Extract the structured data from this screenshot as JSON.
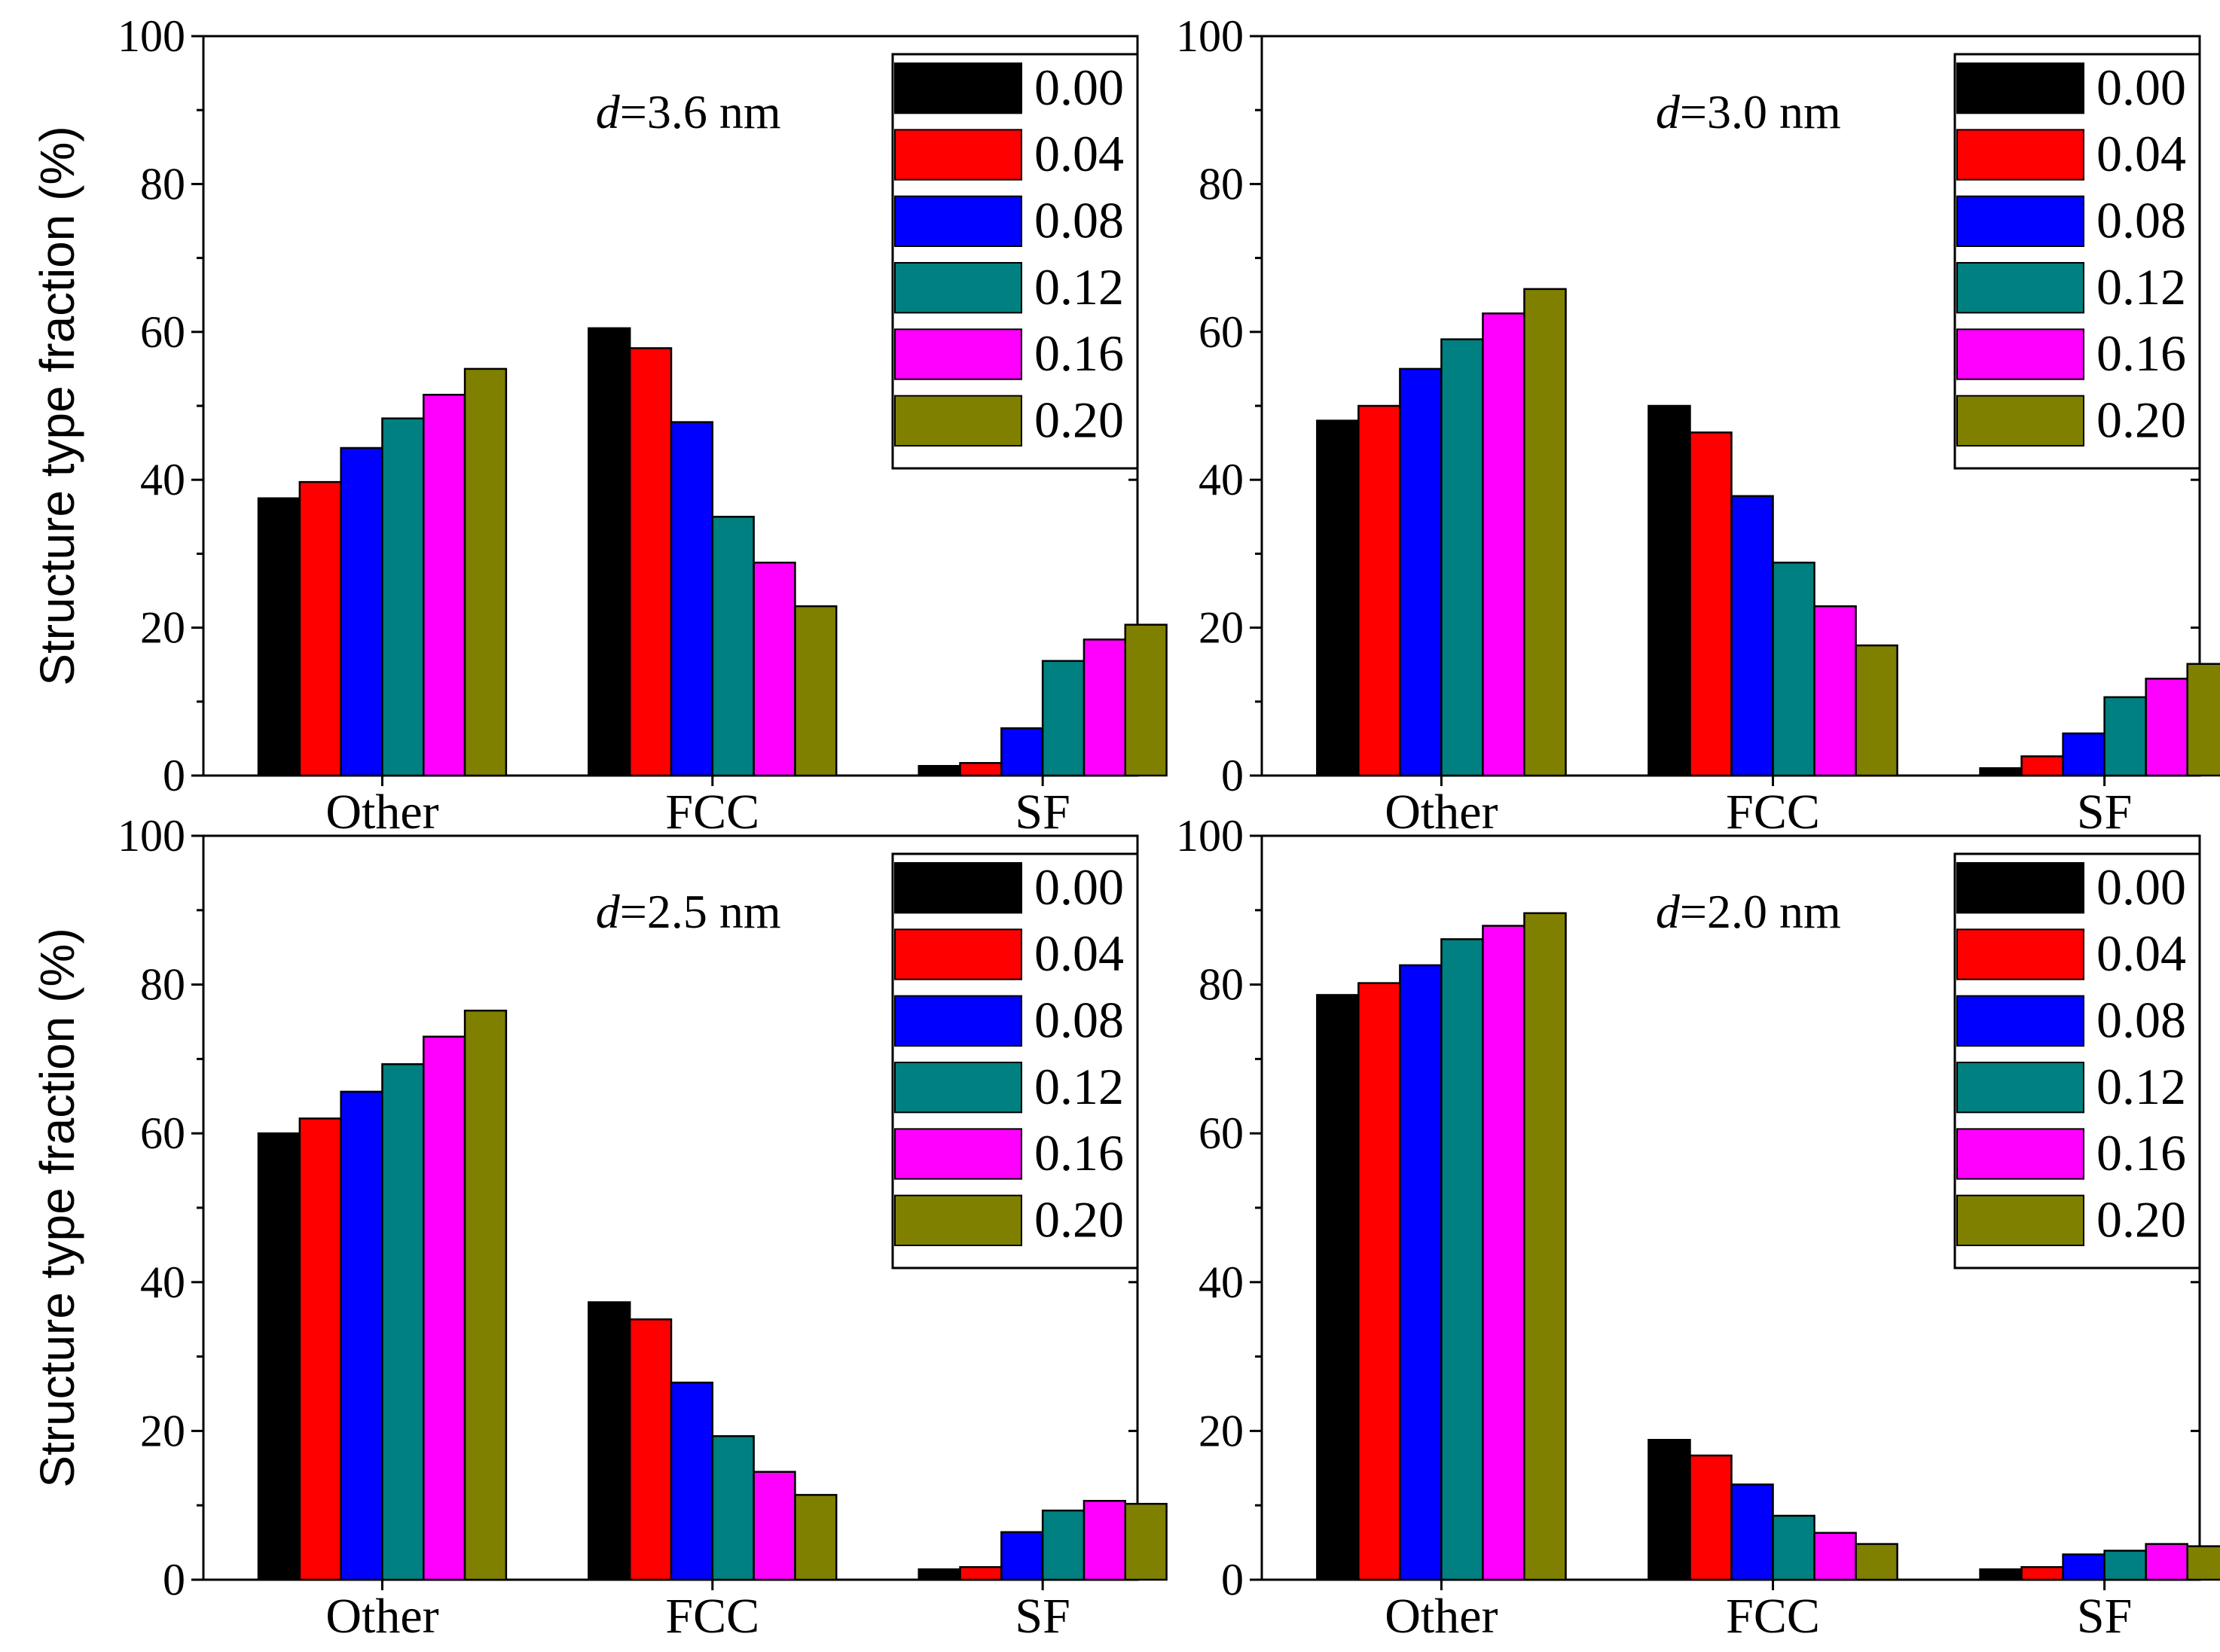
{
  "chart_data": [
    {
      "type": "bar",
      "title_prefix": "d",
      "title_rest": "=3.6 nm",
      "categories": [
        "Other",
        "FCC",
        "SF"
      ],
      "ylabel": "Structure type fraction (%)",
      "ylim": [
        0,
        100
      ],
      "yticks": [
        "0",
        "20",
        "40",
        "60",
        "80",
        "100"
      ],
      "legend_position": "top-right",
      "series": [
        {
          "name": "0.00",
          "color": "#000000",
          "values": [
            37.5,
            60.5,
            1.3
          ]
        },
        {
          "name": "0.04",
          "color": "#ff0000",
          "values": [
            39.7,
            57.8,
            1.7
          ]
        },
        {
          "name": "0.08",
          "color": "#0000ff",
          "values": [
            44.3,
            47.8,
            6.4
          ]
        },
        {
          "name": "0.12",
          "color": "#008080",
          "values": [
            48.3,
            35.0,
            15.5
          ]
        },
        {
          "name": "0.16",
          "color": "#ff00ff",
          "values": [
            51.5,
            28.8,
            18.4
          ]
        },
        {
          "name": "0.20",
          "color": "#808000",
          "values": [
            55.0,
            22.9,
            20.4
          ]
        }
      ]
    },
    {
      "type": "bar",
      "title_prefix": "d",
      "title_rest": "=3.0 nm",
      "categories": [
        "Other",
        "FCC",
        "SF"
      ],
      "ylabel": "",
      "ylim": [
        0,
        100
      ],
      "yticks": [
        "0",
        "20",
        "40",
        "60",
        "80",
        "100"
      ],
      "legend_position": "top-right",
      "series": [
        {
          "name": "0.00",
          "color": "#000000",
          "values": [
            48.0,
            50.0,
            1.0
          ]
        },
        {
          "name": "0.04",
          "color": "#ff0000",
          "values": [
            50.0,
            46.4,
            2.6
          ]
        },
        {
          "name": "0.08",
          "color": "#0000ff",
          "values": [
            55.0,
            37.8,
            5.7
          ]
        },
        {
          "name": "0.12",
          "color": "#008080",
          "values": [
            59.0,
            28.8,
            10.6
          ]
        },
        {
          "name": "0.16",
          "color": "#ff00ff",
          "values": [
            62.5,
            22.9,
            13.1
          ]
        },
        {
          "name": "0.20",
          "color": "#808000",
          "values": [
            65.8,
            17.6,
            15.1
          ]
        }
      ]
    },
    {
      "type": "bar",
      "title_prefix": "d",
      "title_rest": "=2.5 nm",
      "categories": [
        "Other",
        "FCC",
        "SF"
      ],
      "ylabel": "Structure type fraction (%)",
      "ylim": [
        0,
        100
      ],
      "yticks": [
        "0",
        "20",
        "40",
        "60",
        "80",
        "100"
      ],
      "legend_position": "top-right",
      "series": [
        {
          "name": "0.00",
          "color": "#000000",
          "values": [
            60.0,
            37.3,
            1.4
          ]
        },
        {
          "name": "0.04",
          "color": "#ff0000",
          "values": [
            62.0,
            35.0,
            1.7
          ]
        },
        {
          "name": "0.08",
          "color": "#0000ff",
          "values": [
            65.6,
            26.5,
            6.4
          ]
        },
        {
          "name": "0.12",
          "color": "#008080",
          "values": [
            69.3,
            19.3,
            9.3
          ]
        },
        {
          "name": "0.16",
          "color": "#ff00ff",
          "values": [
            73.0,
            14.5,
            10.6
          ]
        },
        {
          "name": "0.20",
          "color": "#808000",
          "values": [
            76.5,
            11.4,
            10.2
          ]
        }
      ]
    },
    {
      "type": "bar",
      "title_prefix": "d",
      "title_rest": "=2.0 nm",
      "categories": [
        "Other",
        "FCC",
        "SF"
      ],
      "ylabel": "",
      "ylim": [
        0,
        100
      ],
      "yticks": [
        "0",
        "20",
        "40",
        "60",
        "80",
        "100"
      ],
      "legend_position": "top-right",
      "series": [
        {
          "name": "0.00",
          "color": "#000000",
          "values": [
            78.6,
            18.8,
            1.4
          ]
        },
        {
          "name": "0.04",
          "color": "#ff0000",
          "values": [
            80.2,
            16.7,
            1.7
          ]
        },
        {
          "name": "0.08",
          "color": "#0000ff",
          "values": [
            82.6,
            12.8,
            3.4
          ]
        },
        {
          "name": "0.12",
          "color": "#008080",
          "values": [
            86.1,
            8.6,
            3.9
          ]
        },
        {
          "name": "0.16",
          "color": "#ff00ff",
          "values": [
            87.9,
            6.3,
            4.8
          ]
        },
        {
          "name": "0.20",
          "color": "#808000",
          "values": [
            89.6,
            4.8,
            4.5
          ]
        }
      ]
    }
  ]
}
